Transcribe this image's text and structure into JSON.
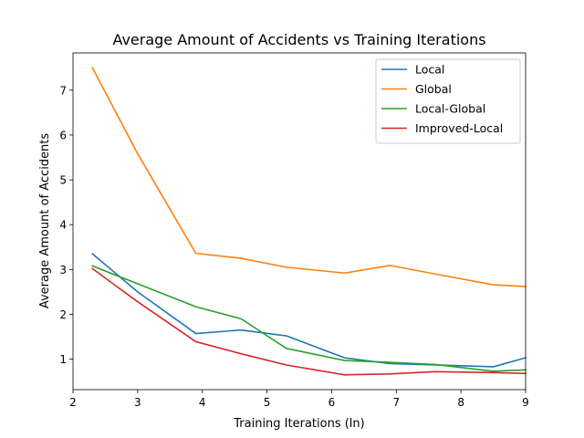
{
  "chart_data": {
    "type": "line",
    "title": "Average Amount of Accidents vs Training Iterations",
    "xlabel": "Training Iterations (ln)",
    "ylabel": "Average Amount of Accidents",
    "xlim": [
      2,
      9
    ],
    "ylim": [
      0.32,
      7.83
    ],
    "xticks": [
      2,
      3,
      4,
      5,
      6,
      7,
      8,
      9
    ],
    "yticks": [
      1,
      2,
      3,
      4,
      5,
      6,
      7
    ],
    "grid": false,
    "legend_position": "top-right",
    "series": [
      {
        "name": "Local",
        "color": "#1f77b4",
        "x": [
          2.3,
          3.0,
          3.9,
          4.6,
          5.3,
          6.2,
          6.9,
          7.6,
          8.5,
          9.0
        ],
        "y": [
          3.35,
          2.5,
          1.57,
          1.65,
          1.52,
          1.03,
          0.9,
          0.87,
          0.83,
          1.03
        ]
      },
      {
        "name": "Global",
        "color": "#ff7f0e",
        "x": [
          2.3,
          3.0,
          3.9,
          4.6,
          5.3,
          6.2,
          6.9,
          7.6,
          8.5,
          9.0
        ],
        "y": [
          7.5,
          5.58,
          3.36,
          3.25,
          3.05,
          2.92,
          3.09,
          2.9,
          2.66,
          2.62
        ]
      },
      {
        "name": "Local-Global",
        "color": "#2ca02c",
        "x": [
          2.3,
          3.0,
          3.9,
          4.6,
          5.3,
          6.2,
          6.9,
          7.6,
          8.5,
          9.0
        ],
        "y": [
          3.08,
          2.68,
          2.17,
          1.9,
          1.24,
          0.97,
          0.93,
          0.88,
          0.73,
          0.76
        ]
      },
      {
        "name": "Improved-Local",
        "color": "#d62728",
        "x": [
          2.3,
          3.0,
          3.9,
          4.6,
          5.3,
          6.2,
          6.9,
          7.6,
          8.5,
          9.0
        ],
        "y": [
          3.02,
          2.28,
          1.39,
          1.12,
          0.87,
          0.65,
          0.67,
          0.72,
          0.7,
          0.68
        ]
      }
    ]
  }
}
